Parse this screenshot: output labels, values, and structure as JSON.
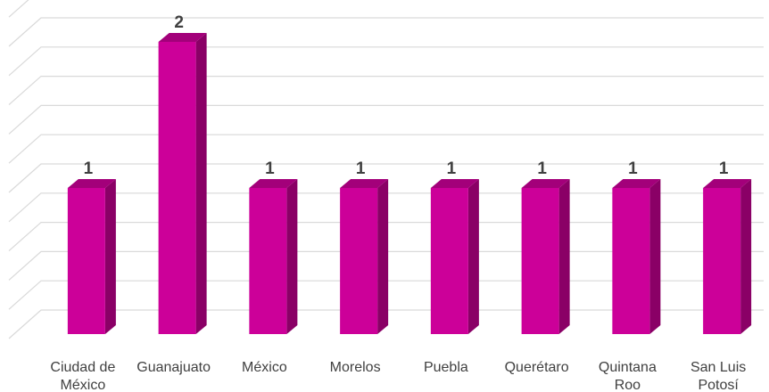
{
  "chart_data": {
    "type": "bar",
    "style": "3d-column",
    "categories": [
      [
        "Ciudad de",
        "México"
      ],
      [
        "Guanajuato"
      ],
      [
        "México"
      ],
      [
        "Morelos"
      ],
      [
        "Puebla"
      ],
      [
        "Querétaro"
      ],
      [
        "Quintana",
        "Roo"
      ],
      [
        "San Luis",
        "Potosí"
      ]
    ],
    "values": [
      1,
      2,
      1,
      1,
      1,
      1,
      1,
      1
    ],
    "data_labels": [
      "1",
      "2",
      "1",
      "1",
      "1",
      "1",
      "1",
      "1"
    ],
    "ylim": [
      0,
      2.2
    ],
    "grid": true,
    "legend": "none",
    "title": "",
    "xlabel": "",
    "ylabel": "",
    "colors": {
      "bar_front": "#cc0099",
      "bar_side": "#8a0066",
      "bar_top": "#a3007a",
      "grid": "#d9d9d9",
      "text": "#404040"
    }
  }
}
